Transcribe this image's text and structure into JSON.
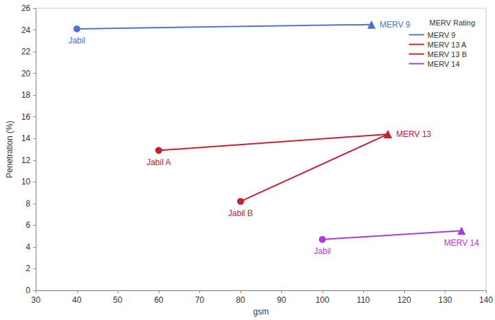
{
  "chart_data": {
    "type": "line",
    "x_label": "gsm",
    "y_label": "Penetration (%)",
    "legend_title": "MERV Rating",
    "legend": "upper right",
    "grid": false,
    "xlim": [
      30,
      140
    ],
    "xticks": [
      30,
      40,
      50,
      60,
      70,
      80,
      90,
      100,
      110,
      120,
      130,
      140
    ],
    "ylim": [
      0,
      26
    ],
    "yticks": [
      0,
      2,
      4,
      6,
      8,
      10,
      12,
      14,
      16,
      18,
      20,
      22,
      24,
      26
    ],
    "series": [
      {
        "name": "MERV 9",
        "color": "#4a74d6",
        "x": [
          40,
          112
        ],
        "values": [
          24.1,
          24.5
        ],
        "labels": [
          "Jabil",
          "MERV 9"
        ],
        "markers": [
          "circle",
          "triangle"
        ]
      },
      {
        "name": "MERV 13 A",
        "color": "#c8202f",
        "x": [
          60,
          116
        ],
        "values": [
          12.9,
          14.4
        ],
        "labels": [
          "Jabil A",
          "MERV 13"
        ],
        "markers": [
          "circle",
          "triangle"
        ]
      },
      {
        "name": "MERV 13 B",
        "color": "#c8202f",
        "x": [
          80,
          116
        ],
        "values": [
          8.2,
          14.4
        ],
        "labels": [
          "Jabil B",
          null
        ],
        "markers": [
          "circle",
          "triangle"
        ]
      },
      {
        "name": "MERV 14",
        "color": "#a83cd8",
        "x": [
          100,
          134
        ],
        "values": [
          4.7,
          5.5
        ],
        "labels": [
          "Jabil",
          "MERV 14"
        ],
        "markers": [
          "circle",
          "triangle"
        ]
      }
    ]
  }
}
